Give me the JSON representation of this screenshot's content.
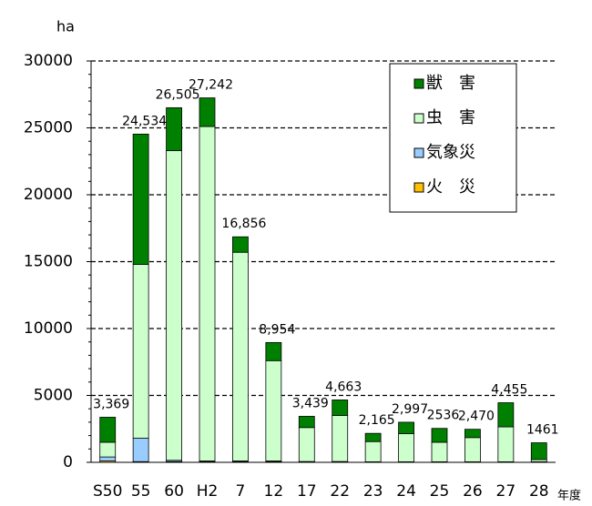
{
  "chart_data": {
    "type": "stacked_bar",
    "y_label": "ha",
    "x_label": "年度",
    "categories": [
      "S50",
      "55",
      "60",
      "H2",
      "7",
      "12",
      "17",
      "22",
      "23",
      "24",
      "25",
      "26",
      "27",
      "28"
    ],
    "series": [
      {
        "name": "火　災",
        "color": "#ffc000",
        "values": [
          100,
          50,
          50,
          50,
          50,
          50,
          30,
          30,
          20,
          20,
          20,
          20,
          20,
          20
        ]
      },
      {
        "name": "気象災",
        "color": "#99ccff",
        "values": [
          300,
          1750,
          100,
          50,
          50,
          50,
          30,
          30,
          20,
          20,
          20,
          20,
          20,
          20
        ]
      },
      {
        "name": "虫　害",
        "color": "#ccffcc",
        "values": [
          1100,
          13000,
          23150,
          25000,
          15600,
          7500,
          2540,
          3440,
          1510,
          2110,
          1460,
          1810,
          2610,
          160
        ]
      },
      {
        "name": "獣　害",
        "color": "#008000",
        "values": [
          1869,
          9734,
          3205,
          2142,
          1156,
          1354,
          839,
          1163,
          615,
          847,
          1036,
          620,
          1805,
          1261
        ]
      }
    ],
    "totals": [
      3369,
      24534,
      26505,
      27242,
      16856,
      8954,
      3439,
      4663,
      2165,
      2997,
      2536,
      2470,
      4455,
      1461
    ],
    "total_labels": [
      "3,369",
      "24,534",
      "26,505",
      "27,242",
      "16,856",
      "8,954",
      "3,439",
      "4,663",
      "2,165",
      "2,997",
      "2536",
      "2,470",
      "4,455",
      "1461"
    ],
    "ylim": [
      0,
      30000
    ],
    "yticks": [
      0,
      5000,
      10000,
      15000,
      20000,
      25000,
      30000
    ],
    "grid": true,
    "legend": "upper right"
  }
}
